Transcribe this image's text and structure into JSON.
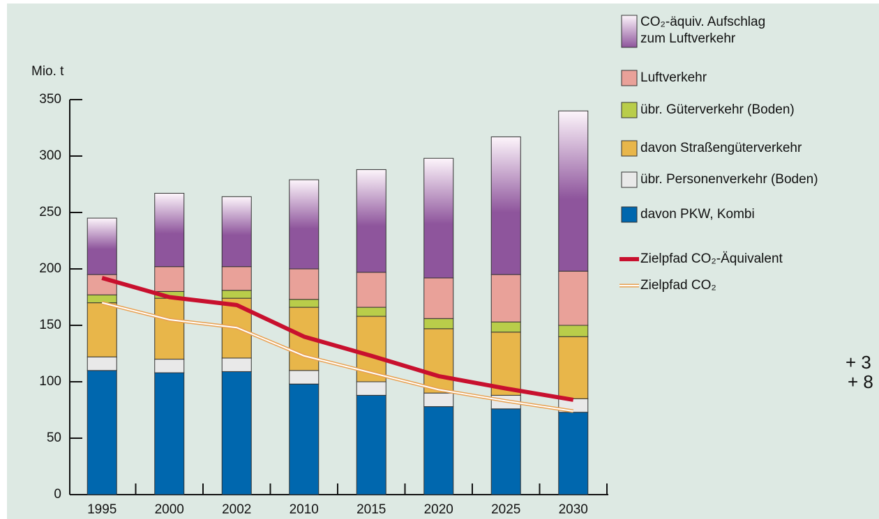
{
  "chart_data": {
    "type": "stacked_bar",
    "y_label": "Mio. t",
    "categories": [
      "1995",
      "2000",
      "2002",
      "2010",
      "2015",
      "2020",
      "2025",
      "2030"
    ],
    "ylim": [
      0,
      350
    ],
    "yticks": [
      0,
      50,
      100,
      150,
      200,
      250,
      300,
      350
    ],
    "series": [
      {
        "name": "davon PKW, Kombi",
        "color": "#0067ae",
        "values": [
          110,
          108,
          109,
          98,
          88,
          78,
          76,
          73
        ]
      },
      {
        "name": "übr. Personenverkehr (Boden)",
        "color": "#e9e9e9",
        "values": [
          12,
          12,
          12,
          12,
          12,
          12,
          12,
          12
        ]
      },
      {
        "name": "davon Straßengüterverkehr",
        "color": "#e8b64a",
        "values": [
          48,
          54,
          53,
          56,
          58,
          57,
          56,
          55
        ]
      },
      {
        "name": "übr. Güterverkehr (Boden)",
        "color": "#b9cd4a",
        "values": [
          7,
          6,
          7,
          7,
          8,
          9,
          9,
          10
        ]
      },
      {
        "name": "Luftverkehr",
        "color": "#e9a199",
        "values": [
          18,
          22,
          21,
          27,
          31,
          36,
          42,
          48
        ]
      },
      {
        "name": "CO₂-äquiv. Aufschlag zum Luftverkehr",
        "color": "#8e559c",
        "values": [
          50,
          65,
          62,
          79,
          91,
          106,
          122,
          142
        ]
      }
    ],
    "line_series": [
      {
        "name": "Zielpfad CO₂-Äquivalent",
        "color": "#c8102e",
        "values": [
          192,
          175,
          168,
          140,
          123,
          105,
          94,
          84
        ]
      },
      {
        "name": "Zielpfad CO₂",
        "color": "#e8a050",
        "values": [
          170,
          155,
          148,
          123,
          108,
          93,
          83,
          74
        ]
      }
    ],
    "annotations": [
      "+ 3",
      "+ 8"
    ]
  }
}
